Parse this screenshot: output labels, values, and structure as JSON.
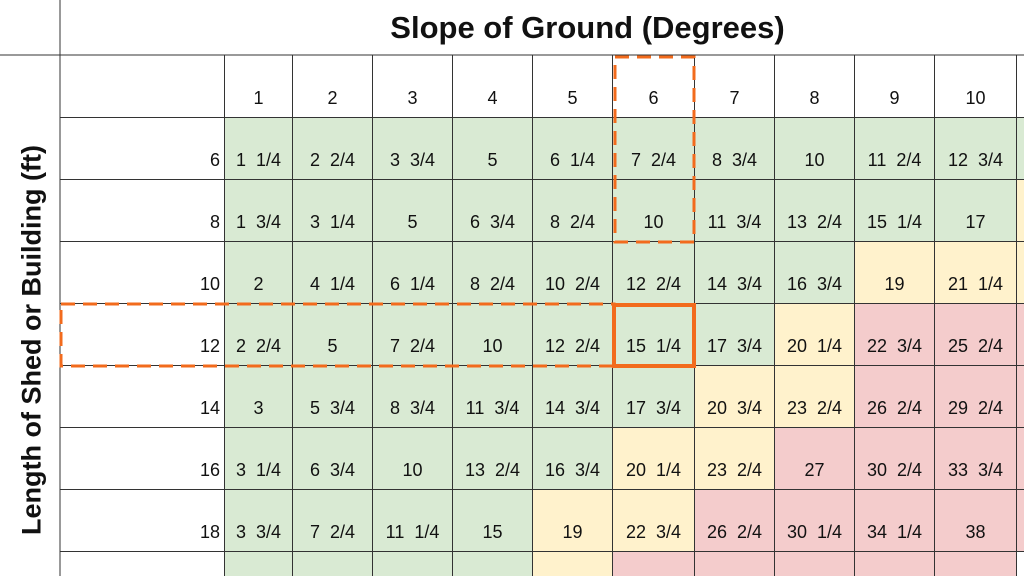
{
  "header": {
    "title": "Slope of Ground (Degrees)",
    "row_axis_label": "Length of Shed or Building (ft)"
  },
  "table": {
    "columns": [
      "1",
      "2",
      "3",
      "4",
      "5",
      "6",
      "7",
      "8",
      "9",
      "10"
    ],
    "rows": [
      {
        "label": "6",
        "cells": [
          "1 1/4",
          "2 2/4",
          "3 3/4",
          "5",
          "6 1/4",
          "7 2/4",
          "8 3/4",
          "10",
          "11 2/4",
          "12 3/4"
        ],
        "fills": [
          "#d9ead3",
          "#d9ead3",
          "#d9ead3",
          "#d9ead3",
          "#d9ead3",
          "#d9ead3",
          "#d9ead3",
          "#d9ead3",
          "#d9ead3",
          "#d9ead3"
        ]
      },
      {
        "label": "8",
        "cells": [
          "1 3/4",
          "3 1/4",
          "5",
          "6 3/4",
          "8 2/4",
          "10",
          "11 3/4",
          "13 2/4",
          "15 1/4",
          "17"
        ],
        "fills": [
          "#d9ead3",
          "#d9ead3",
          "#d9ead3",
          "#d9ead3",
          "#d9ead3",
          "#d9ead3",
          "#d9ead3",
          "#d9ead3",
          "#d9ead3",
          "#d9ead3"
        ]
      },
      {
        "label": "10",
        "cells": [
          "2",
          "4 1/4",
          "6 1/4",
          "8 2/4",
          "10 2/4",
          "12 2/4",
          "14 3/4",
          "16 3/4",
          "19",
          "21 1/4"
        ],
        "fills": [
          "#d9ead3",
          "#d9ead3",
          "#d9ead3",
          "#d9ead3",
          "#d9ead3",
          "#d9ead3",
          "#d9ead3",
          "#d9ead3",
          "#fff2cc",
          "#fff2cc"
        ]
      },
      {
        "label": "12",
        "cells": [
          "2 2/4",
          "5",
          "7 2/4",
          "10",
          "12 2/4",
          "15 1/4",
          "17 3/4",
          "20 1/4",
          "22 3/4",
          "25 2/4"
        ],
        "fills": [
          "#d9ead3",
          "#d9ead3",
          "#d9ead3",
          "#d9ead3",
          "#d9ead3",
          "#d9ead3",
          "#d9ead3",
          "#fff2cc",
          "#f4cccc",
          "#f4cccc"
        ]
      },
      {
        "label": "14",
        "cells": [
          "3",
          "5 3/4",
          "8 3/4",
          "11 3/4",
          "14 3/4",
          "17 3/4",
          "20 3/4",
          "23 2/4",
          "26 2/4",
          "29 2/4"
        ],
        "fills": [
          "#d9ead3",
          "#d9ead3",
          "#d9ead3",
          "#d9ead3",
          "#d9ead3",
          "#d9ead3",
          "#fff2cc",
          "#fff2cc",
          "#f4cccc",
          "#f4cccc"
        ]
      },
      {
        "label": "16",
        "cells": [
          "3 1/4",
          "6 3/4",
          "10",
          "13 2/4",
          "16 3/4",
          "20 1/4",
          "23 2/4",
          "27",
          "30 2/4",
          "33 3/4"
        ],
        "fills": [
          "#d9ead3",
          "#d9ead3",
          "#d9ead3",
          "#d9ead3",
          "#d9ead3",
          "#fff2cc",
          "#fff2cc",
          "#f4cccc",
          "#f4cccc",
          "#f4cccc"
        ]
      },
      {
        "label": "18",
        "cells": [
          "3 3/4",
          "7 2/4",
          "11 1/4",
          "15",
          "19",
          "22 3/4",
          "26 2/4",
          "30 1/4",
          "34 1/4",
          "38"
        ],
        "fills": [
          "#d9ead3",
          "#d9ead3",
          "#d9ead3",
          "#d9ead3",
          "#fff2cc",
          "#fff2cc",
          "#f4cccc",
          "#f4cccc",
          "#f4cccc",
          "#f4cccc"
        ]
      }
    ]
  }
}
